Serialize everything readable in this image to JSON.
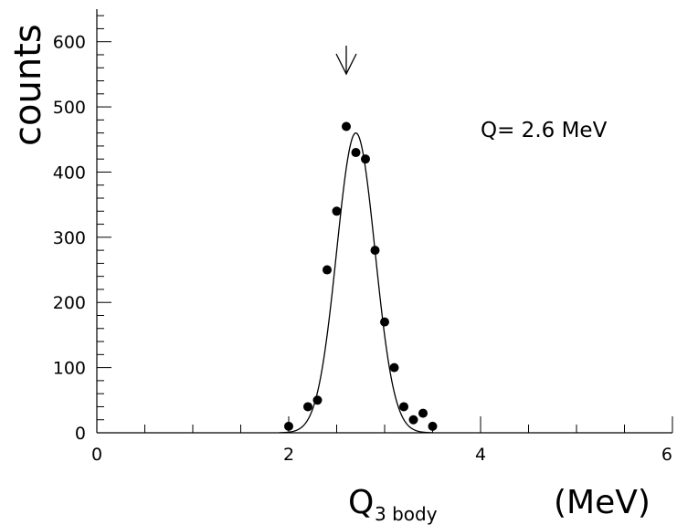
{
  "chart_data": {
    "type": "scatter",
    "title": "",
    "xlabel": "Q",
    "xlabel_subscript": "3 body",
    "xunit": "(MeV)",
    "ylabel": "counts",
    "xlim": [
      0,
      6
    ],
    "ylim": [
      0,
      650
    ],
    "x_major_ticks": [
      0,
      2,
      4,
      6
    ],
    "x_tick_labels": [
      "0",
      "2",
      "4",
      "6"
    ],
    "y_major_ticks": [
      0,
      100,
      200,
      300,
      400,
      500,
      600
    ],
    "y_tick_labels": [
      "0",
      "100",
      "200",
      "300",
      "400",
      "500",
      "600"
    ],
    "grid": false,
    "annotation": "Q= 2.6 MeV",
    "arrow_x": 2.6,
    "marker_color": "#000000",
    "series": [
      {
        "marker": "dot",
        "x": [
          2.0,
          2.2,
          2.3,
          2.4,
          2.5,
          2.6,
          2.7,
          2.8,
          2.9,
          3.0,
          3.1,
          3.2,
          3.3,
          3.4,
          3.5
        ],
        "y": [
          10,
          40,
          50,
          250,
          340,
          470,
          430,
          420,
          280,
          170,
          100,
          40,
          20,
          30,
          10
        ]
      }
    ],
    "fit": {
      "shape": "gaussian",
      "mean": 2.7,
      "sigma": 0.2,
      "amplitude": 460
    }
  }
}
